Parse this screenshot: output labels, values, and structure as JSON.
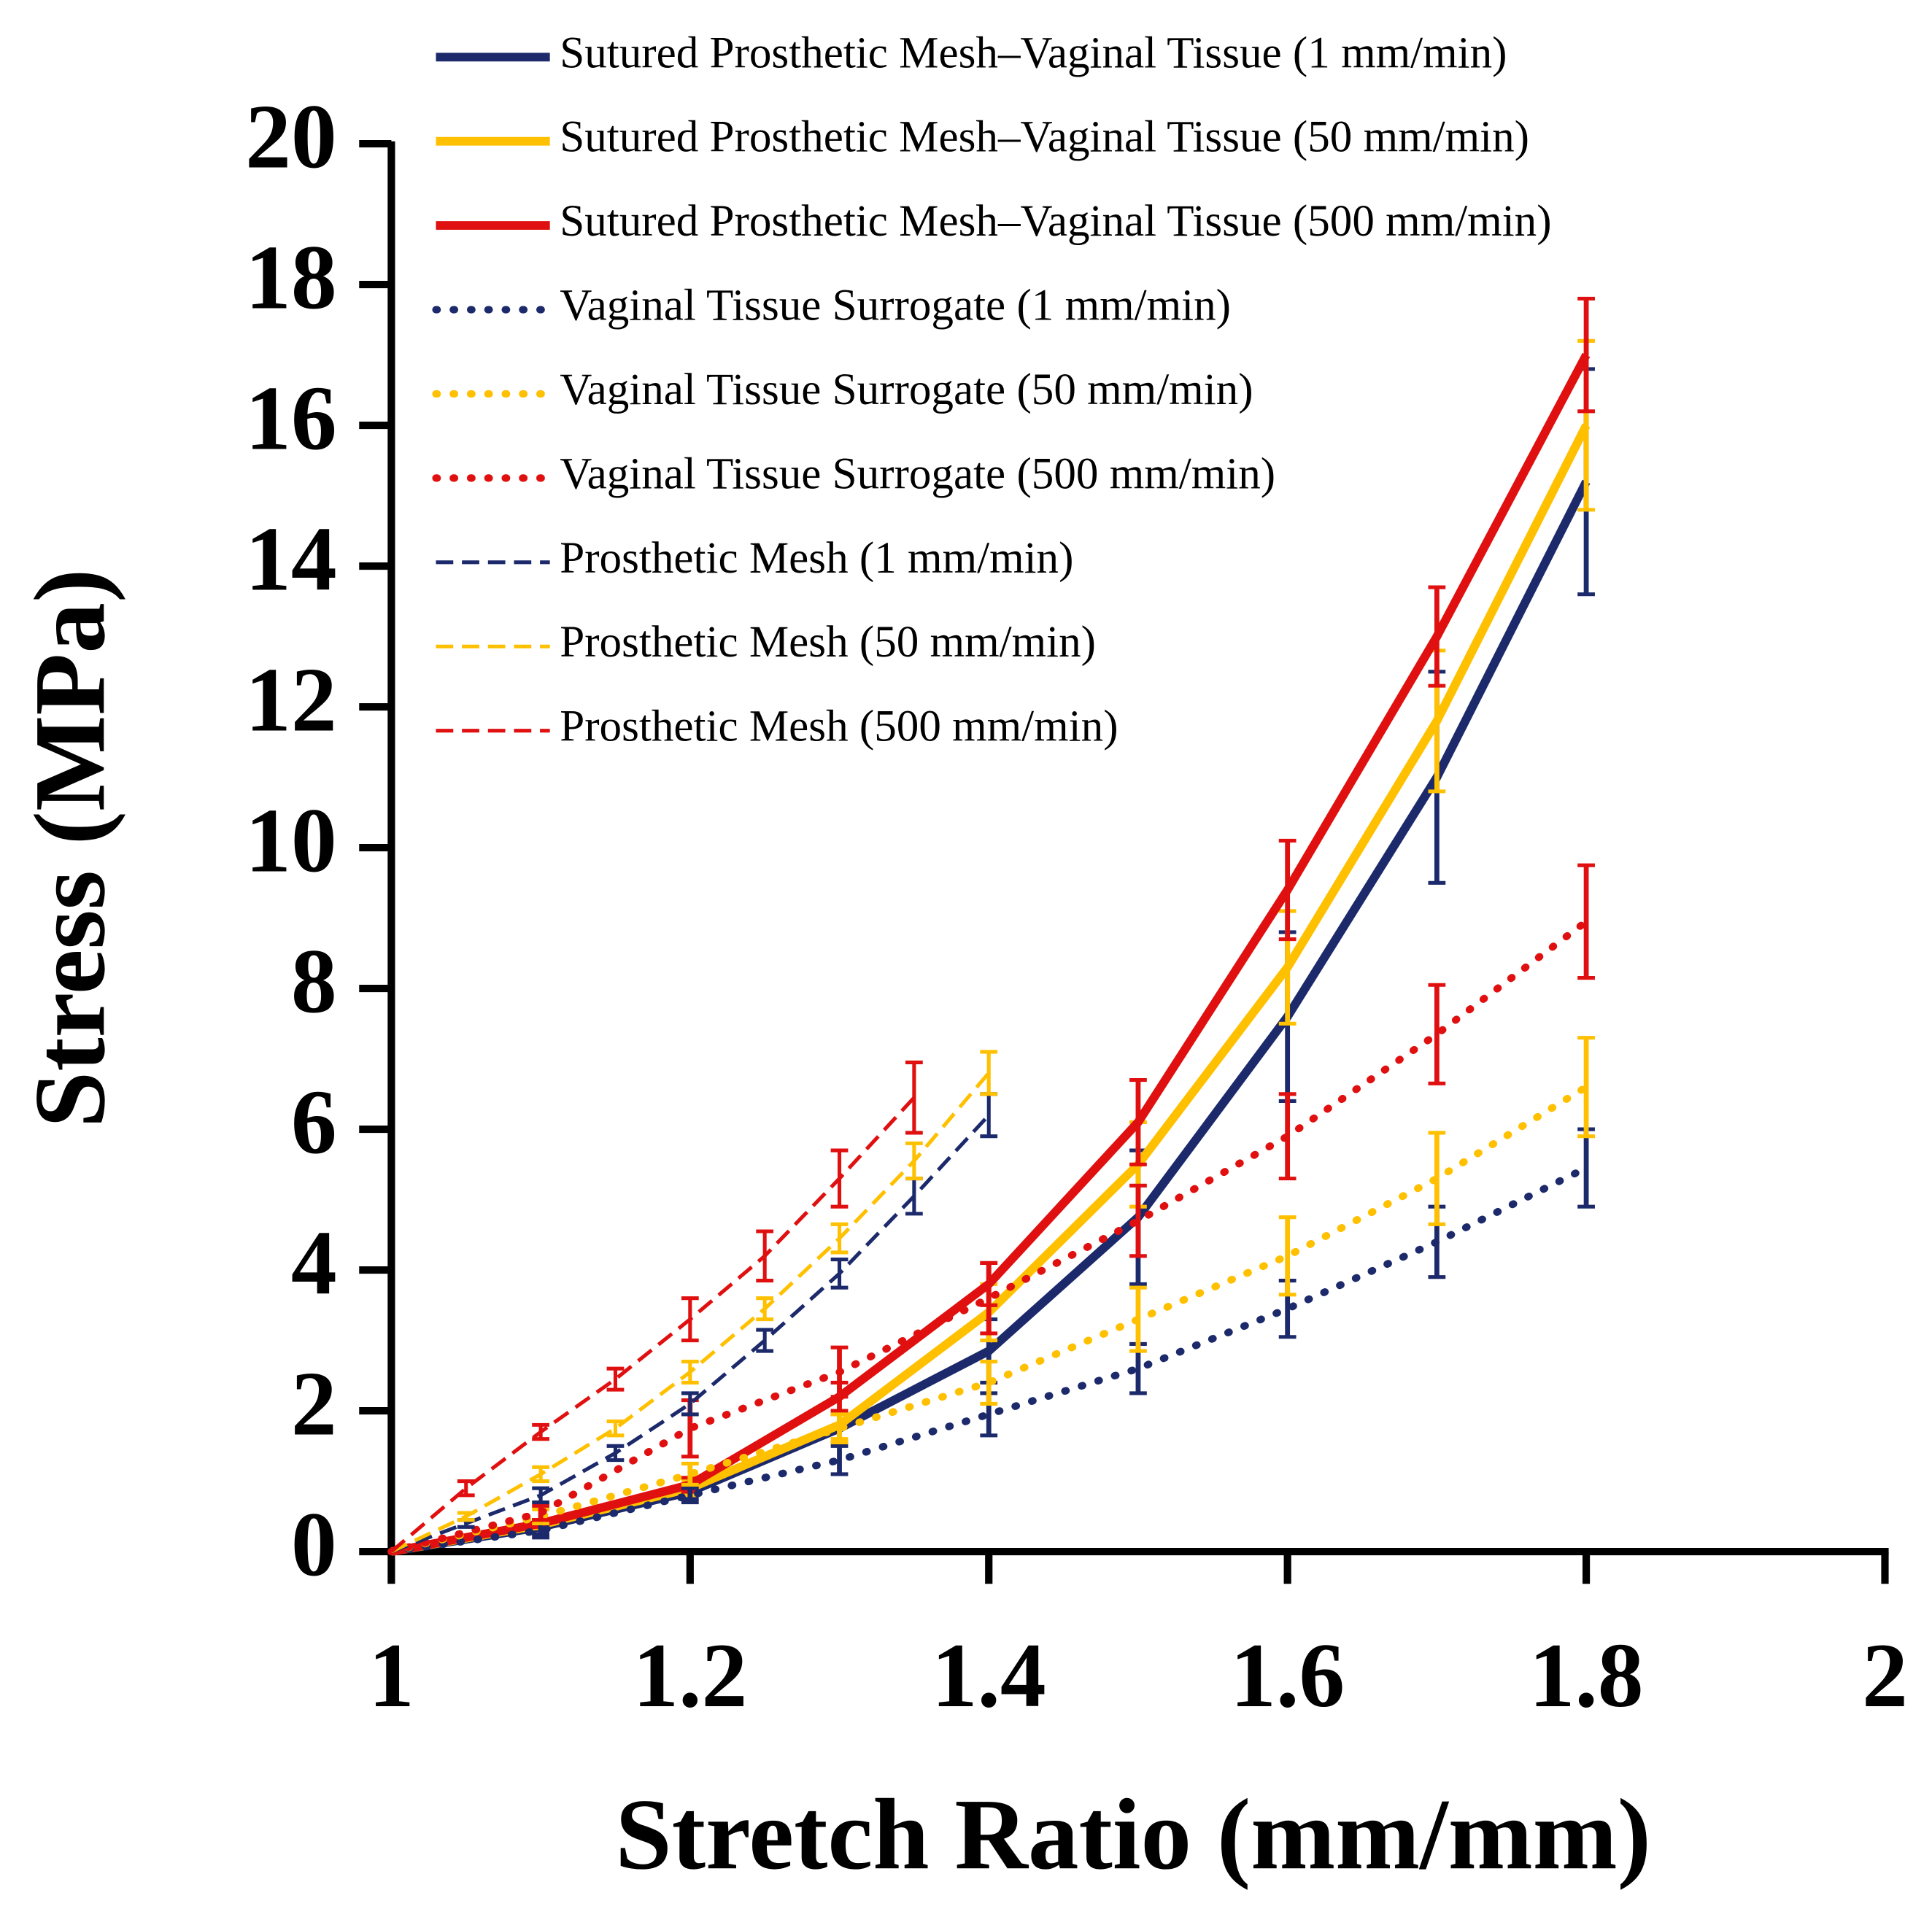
{
  "chart_data": {
    "type": "line",
    "x_label": "Stretch Ratio (mm/mm)",
    "y_label": "Stress (MPa)",
    "xlim": [
      1,
      2
    ],
    "xticks": [
      1,
      1.2,
      1.4,
      1.6,
      1.8,
      2
    ],
    "ylim": [
      0,
      20
    ],
    "yticks": [
      0,
      2,
      4,
      6,
      8,
      10,
      12,
      14,
      16,
      18,
      20
    ],
    "legend": "top",
    "series": [
      {
        "name": "Sutured Prosthetic Mesh–Vaginal Tissue (1 mm/min)",
        "color": "#1c2a6b",
        "style": "solid",
        "x": [
          1,
          1.1,
          1.2,
          1.3,
          1.4,
          1.5,
          1.6,
          1.7,
          1.8
        ],
        "values": [
          0,
          0.35,
          0.85,
          1.75,
          2.85,
          4.75,
          7.6,
          11.0,
          15.2
        ],
        "errors": [
          0,
          0.1,
          0.1,
          0.2,
          0.45,
          0.95,
          1.2,
          1.5,
          1.6
        ]
      },
      {
        "name": "Sutured Prosthetic Mesh–Vaginal Tissue (50 mm/min)",
        "color": "#ffc000",
        "style": "solid",
        "x": [
          1,
          1.1,
          1.2,
          1.3,
          1.4,
          1.5,
          1.6,
          1.7,
          1.8
        ],
        "values": [
          0,
          0.38,
          0.9,
          1.8,
          3.4,
          5.5,
          8.3,
          11.8,
          16.0
        ],
        "errors": [
          0,
          0.05,
          0.1,
          0.2,
          0.4,
          0.6,
          0.8,
          1.0,
          1.2
        ]
      },
      {
        "name": "Sutured Prosthetic Mesh–Vaginal Tissue (500 mm/min)",
        "color": "#e01010",
        "style": "solid",
        "x": [
          1,
          1.1,
          1.2,
          1.3,
          1.4,
          1.5,
          1.6,
          1.7,
          1.8
        ],
        "values": [
          0,
          0.4,
          0.95,
          2.2,
          3.8,
          6.1,
          9.4,
          13.0,
          17.0
        ],
        "errors": [
          0,
          0.05,
          0.1,
          0.2,
          0.3,
          0.6,
          0.7,
          0.7,
          0.8
        ]
      },
      {
        "name": "Vaginal Tissue Surrogate (1 mm/min)",
        "color": "#1c2a6b",
        "style": "dotted",
        "x": [
          1,
          1.1,
          1.2,
          1.3,
          1.4,
          1.5,
          1.6,
          1.7,
          1.8
        ],
        "values": [
          0,
          0.3,
          0.8,
          1.3,
          1.95,
          2.6,
          3.45,
          4.4,
          5.45
        ],
        "errors": [
          0,
          0.1,
          0.1,
          0.2,
          0.3,
          0.35,
          0.4,
          0.5,
          0.55
        ]
      },
      {
        "name": "Vaginal Tissue Surrogate (50 mm/min)",
        "color": "#ffc000",
        "style": "dotted",
        "x": [
          1,
          1.1,
          1.2,
          1.3,
          1.4,
          1.5,
          1.6,
          1.7,
          1.8
        ],
        "values": [
          0,
          0.5,
          1.1,
          1.75,
          2.4,
          3.3,
          4.2,
          5.3,
          6.6
        ],
        "errors": [
          0,
          0.1,
          0.15,
          0.2,
          0.3,
          0.45,
          0.55,
          0.65,
          0.7
        ]
      },
      {
        "name": "Vaginal Tissue Surrogate (500 mm/min)",
        "color": "#e01010",
        "style": "dotted",
        "x": [
          1,
          1.1,
          1.2,
          1.3,
          1.4,
          1.5,
          1.6,
          1.7,
          1.8
        ],
        "values": [
          0,
          0.55,
          1.75,
          2.55,
          3.6,
          4.7,
          5.9,
          7.35,
          8.95
        ],
        "errors": [
          0,
          0.1,
          0.4,
          0.35,
          0.5,
          0.5,
          0.6,
          0.7,
          0.8
        ]
      },
      {
        "name": "Prosthetic Mesh (1 mm/min)",
        "color": "#1c2a6b",
        "style": "dashed",
        "x": [
          1,
          1.05,
          1.1,
          1.15,
          1.2,
          1.25,
          1.3,
          1.35,
          1.4
        ],
        "values": [
          0,
          0.4,
          0.8,
          1.4,
          2.1,
          3.0,
          3.95,
          5.05,
          6.2
        ],
        "errors": [
          0,
          0.05,
          0.1,
          0.1,
          0.15,
          0.15,
          0.2,
          0.25,
          0.3
        ]
      },
      {
        "name": "Prosthetic Mesh (50 mm/min)",
        "color": "#ffc000",
        "style": "dashed",
        "x": [
          1,
          1.05,
          1.1,
          1.15,
          1.2,
          1.25,
          1.3,
          1.35,
          1.4
        ],
        "values": [
          0,
          0.5,
          1.1,
          1.75,
          2.55,
          3.45,
          4.45,
          5.55,
          6.8
        ],
        "errors": [
          0,
          0.05,
          0.1,
          0.1,
          0.15,
          0.15,
          0.2,
          0.25,
          0.3
        ]
      },
      {
        "name": "Prosthetic Mesh (500 mm/min)",
        "color": "#e01010",
        "style": "dashed",
        "x": [
          1,
          1.05,
          1.1,
          1.15,
          1.2,
          1.25,
          1.3,
          1.35
        ],
        "values": [
          0,
          0.9,
          1.7,
          2.45,
          3.3,
          4.2,
          5.3,
          6.45
        ],
        "errors": [
          0,
          0.1,
          0.1,
          0.15,
          0.3,
          0.35,
          0.4,
          0.5
        ]
      }
    ]
  }
}
